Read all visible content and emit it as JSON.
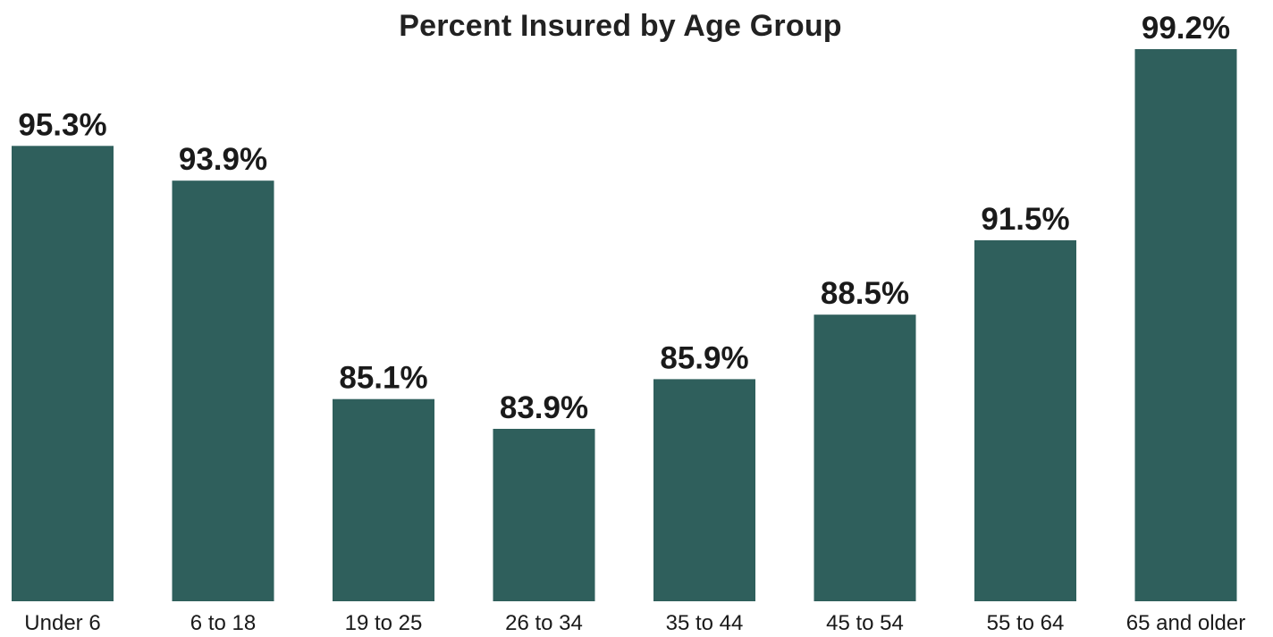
{
  "chart_data": {
    "type": "bar",
    "title": "Percent Insured by Age Group",
    "xlabel": "",
    "ylabel": "",
    "categories": [
      "Under 6",
      "6 to 18",
      "19 to 25",
      "26 to 34",
      "35 to 44",
      "45 to 54",
      "55 to 64",
      "65 and older"
    ],
    "values": [
      95.3,
      93.9,
      85.1,
      83.9,
      85.9,
      88.5,
      91.5,
      99.2
    ],
    "value_labels": [
      "95.3%",
      "93.9%",
      "85.1%",
      "83.9%",
      "85.9%",
      "88.5%",
      "91.5%",
      "99.2%"
    ],
    "grid": false,
    "legend": "none",
    "bar_color": "#2f5f5c"
  }
}
